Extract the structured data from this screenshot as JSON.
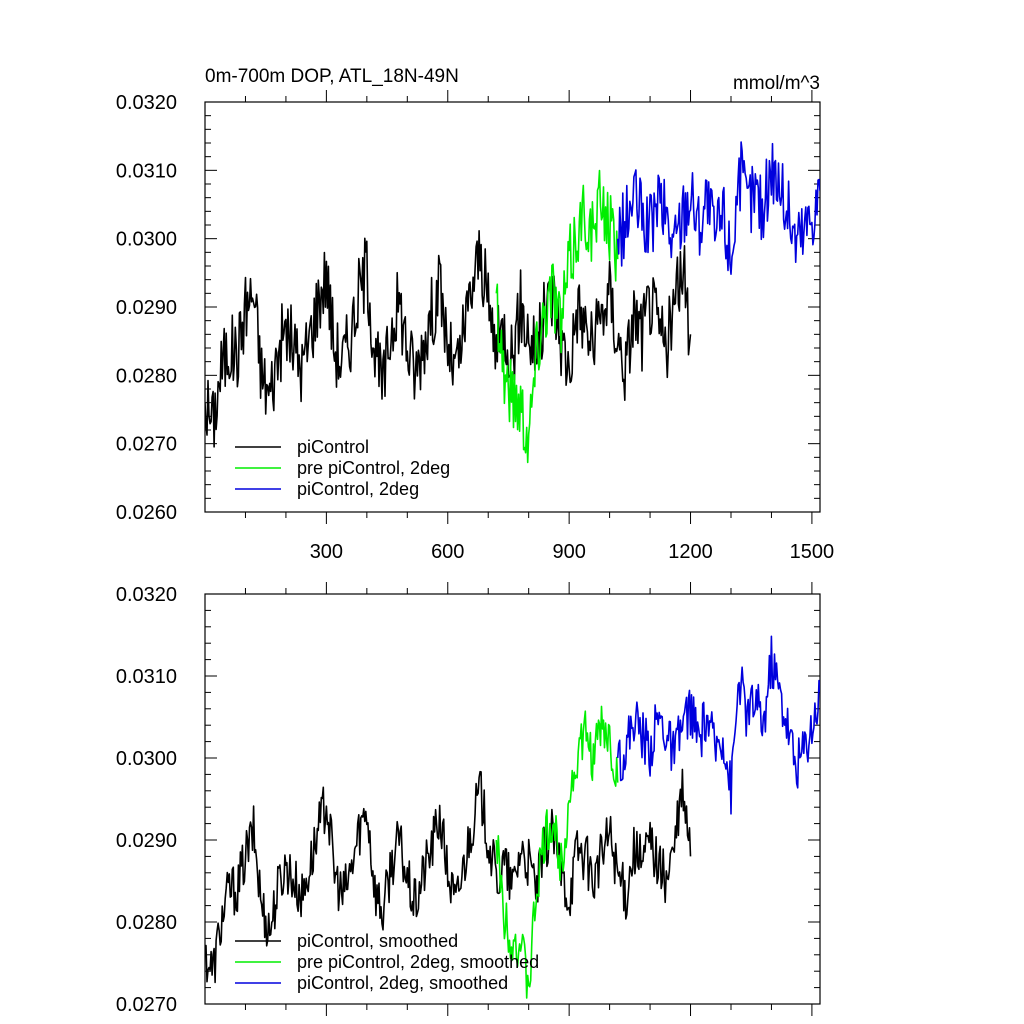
{
  "chart_data": [
    {
      "type": "line",
      "title": "0m-700m DOP, ATL_18N-49N",
      "units": "mmol/m^3",
      "xlim": [
        0,
        1520
      ],
      "ylim": [
        0.026,
        0.032
      ],
      "x_ticks": [
        300,
        600,
        900,
        1200,
        1500
      ],
      "x_tick_labels": [
        "300",
        "600",
        "900",
        "1200",
        "1500"
      ],
      "y_ticks": [
        0.026,
        0.027,
        0.028,
        0.029,
        0.03,
        0.031,
        0.032
      ],
      "y_tick_labels": [
        "0.0260",
        "0.0270",
        "0.0280",
        "0.0290",
        "0.0300",
        "0.0310",
        "0.0320"
      ],
      "series": [
        {
          "name": "piControl",
          "color": "#000000",
          "x": [
            0,
            20,
            40,
            60,
            80,
            100,
            120,
            140,
            160,
            180,
            200,
            220,
            240,
            260,
            280,
            300,
            320,
            340,
            360,
            380,
            400,
            420,
            440,
            460,
            480,
            500,
            520,
            540,
            560,
            580,
            600,
            620,
            640,
            660,
            680,
            700,
            720,
            740,
            760,
            780,
            800,
            820,
            840,
            860,
            880,
            900,
            920,
            940,
            960,
            980,
            1000,
            1020,
            1040,
            1060,
            1080,
            1100,
            1120,
            1140,
            1160,
            1180,
            1200
          ],
          "values": [
            0.0276,
            0.0273,
            0.0281,
            0.0284,
            0.0283,
            0.029,
            0.0292,
            0.028,
            0.0277,
            0.0283,
            0.0287,
            0.0284,
            0.0281,
            0.0286,
            0.0291,
            0.0295,
            0.0284,
            0.0282,
            0.0286,
            0.0292,
            0.0296,
            0.0283,
            0.0278,
            0.0287,
            0.0291,
            0.0284,
            0.028,
            0.0285,
            0.0289,
            0.0293,
            0.0284,
            0.028,
            0.0286,
            0.0293,
            0.0298,
            0.029,
            0.0284,
            0.0287,
            0.0283,
            0.029,
            0.0286,
            0.0283,
            0.0289,
            0.0292,
            0.0285,
            0.0281,
            0.029,
            0.0287,
            0.0284,
            0.0289,
            0.0292,
            0.0285,
            0.0281,
            0.0289,
            0.0286,
            0.0291,
            0.0287,
            0.0284,
            0.029,
            0.0296,
            0.0286
          ]
        },
        {
          "name": "pre piControl, 2deg",
          "color": "#00ee00",
          "x": [
            720,
            740,
            760,
            780,
            800,
            820,
            840,
            860,
            880,
            900,
            920,
            940,
            960,
            980,
            1000,
            1020
          ],
          "values": [
            0.0292,
            0.028,
            0.0277,
            0.0276,
            0.0271,
            0.0284,
            0.029,
            0.0293,
            0.0287,
            0.0296,
            0.0301,
            0.0304,
            0.03,
            0.0306,
            0.0302,
            0.0297
          ]
        },
        {
          "name": "piControl, 2deg",
          "color": "#0000dd",
          "x": [
            1020,
            1040,
            1060,
            1080,
            1100,
            1120,
            1140,
            1160,
            1180,
            1200,
            1220,
            1240,
            1260,
            1280,
            1300,
            1320,
            1340,
            1360,
            1380,
            1400,
            1420,
            1440,
            1460,
            1480,
            1500,
            1520
          ],
          "values": [
            0.03,
            0.0302,
            0.0306,
            0.0303,
            0.0301,
            0.0306,
            0.0303,
            0.0299,
            0.0304,
            0.0307,
            0.0302,
            0.0306,
            0.03,
            0.0304,
            0.0297,
            0.031,
            0.0305,
            0.0307,
            0.0304,
            0.0311,
            0.0308,
            0.0304,
            0.03,
            0.0301,
            0.0304,
            0.0307
          ]
        }
      ],
      "legend": [
        {
          "label": "piControl",
          "color": "#000000"
        },
        {
          "label": "pre piControl, 2deg",
          "color": "#00ee00"
        },
        {
          "label": "piControl, 2deg",
          "color": "#0000dd"
        }
      ],
      "legend_position": "bottom-left"
    },
    {
      "type": "line",
      "title": "",
      "xlim": [
        0,
        1520
      ],
      "ylim": [
        0.027,
        0.032
      ],
      "x_ticks": [
        300,
        600,
        900,
        1200,
        1500
      ],
      "y_ticks": [
        0.027,
        0.028,
        0.029,
        0.03,
        0.031,
        0.032
      ],
      "y_tick_labels": [
        "0.0270",
        "0.0280",
        "0.0290",
        "0.0300",
        "0.0310",
        "0.0320"
      ],
      "series": [
        {
          "name": "piControl, smoothed",
          "color": "#000000",
          "x": [
            0,
            20,
            40,
            60,
            80,
            100,
            120,
            140,
            160,
            180,
            200,
            220,
            240,
            260,
            280,
            300,
            320,
            340,
            360,
            380,
            400,
            420,
            440,
            460,
            480,
            500,
            520,
            540,
            560,
            580,
            600,
            620,
            640,
            660,
            680,
            700,
            720,
            740,
            760,
            780,
            800,
            820,
            840,
            860,
            880,
            900,
            920,
            940,
            960,
            980,
            1000,
            1020,
            1040,
            1060,
            1080,
            1100,
            1120,
            1140,
            1160,
            1180,
            1200
          ],
          "values": [
            0.0276,
            0.0274,
            0.028,
            0.0284,
            0.0284,
            0.0288,
            0.0291,
            0.0282,
            0.0279,
            0.0284,
            0.0287,
            0.0285,
            0.0283,
            0.0287,
            0.0291,
            0.0295,
            0.0286,
            0.0283,
            0.0286,
            0.0291,
            0.0294,
            0.0284,
            0.0281,
            0.0287,
            0.029,
            0.0285,
            0.0282,
            0.0286,
            0.0289,
            0.0293,
            0.0286,
            0.0282,
            0.0287,
            0.0292,
            0.0296,
            0.029,
            0.0285,
            0.0287,
            0.0284,
            0.0289,
            0.0287,
            0.0284,
            0.0289,
            0.0291,
            0.0286,
            0.0283,
            0.0289,
            0.0288,
            0.0285,
            0.0288,
            0.0291,
            0.0286,
            0.0283,
            0.0289,
            0.0287,
            0.029,
            0.0287,
            0.0285,
            0.0289,
            0.0296,
            0.0288
          ]
        },
        {
          "name": "pre piControl, 2deg, smoothed",
          "color": "#00ee00",
          "x": [
            720,
            740,
            760,
            780,
            800,
            820,
            840,
            860,
            880,
            900,
            920,
            940,
            960,
            980,
            1000,
            1020
          ],
          "values": [
            0.029,
            0.0281,
            0.0278,
            0.0277,
            0.0272,
            0.0284,
            0.029,
            0.0292,
            0.0287,
            0.0295,
            0.03,
            0.0303,
            0.03,
            0.0304,
            0.0302,
            0.0297
          ]
        },
        {
          "name": "piControl, 2deg, smoothed",
          "color": "#0000dd",
          "x": [
            1020,
            1040,
            1060,
            1080,
            1100,
            1120,
            1140,
            1160,
            1180,
            1200,
            1220,
            1240,
            1260,
            1280,
            1300,
            1320,
            1340,
            1360,
            1380,
            1400,
            1420,
            1440,
            1460,
            1480,
            1500,
            1520
          ],
          "values": [
            0.03,
            0.0301,
            0.0305,
            0.0303,
            0.0301,
            0.0305,
            0.0303,
            0.03,
            0.0304,
            0.0306,
            0.0302,
            0.0305,
            0.0301,
            0.0303,
            0.0296,
            0.031,
            0.0305,
            0.0307,
            0.0304,
            0.0312,
            0.0308,
            0.0304,
            0.0299,
            0.0301,
            0.0304,
            0.0308
          ]
        }
      ],
      "legend": [
        {
          "label": "piControl, smoothed",
          "color": "#000000"
        },
        {
          "label": "pre piControl, 2deg, smoothed",
          "color": "#00ee00"
        },
        {
          "label": "piControl, 2deg, smoothed",
          "color": "#0000dd"
        }
      ],
      "legend_position": "bottom-left"
    }
  ]
}
